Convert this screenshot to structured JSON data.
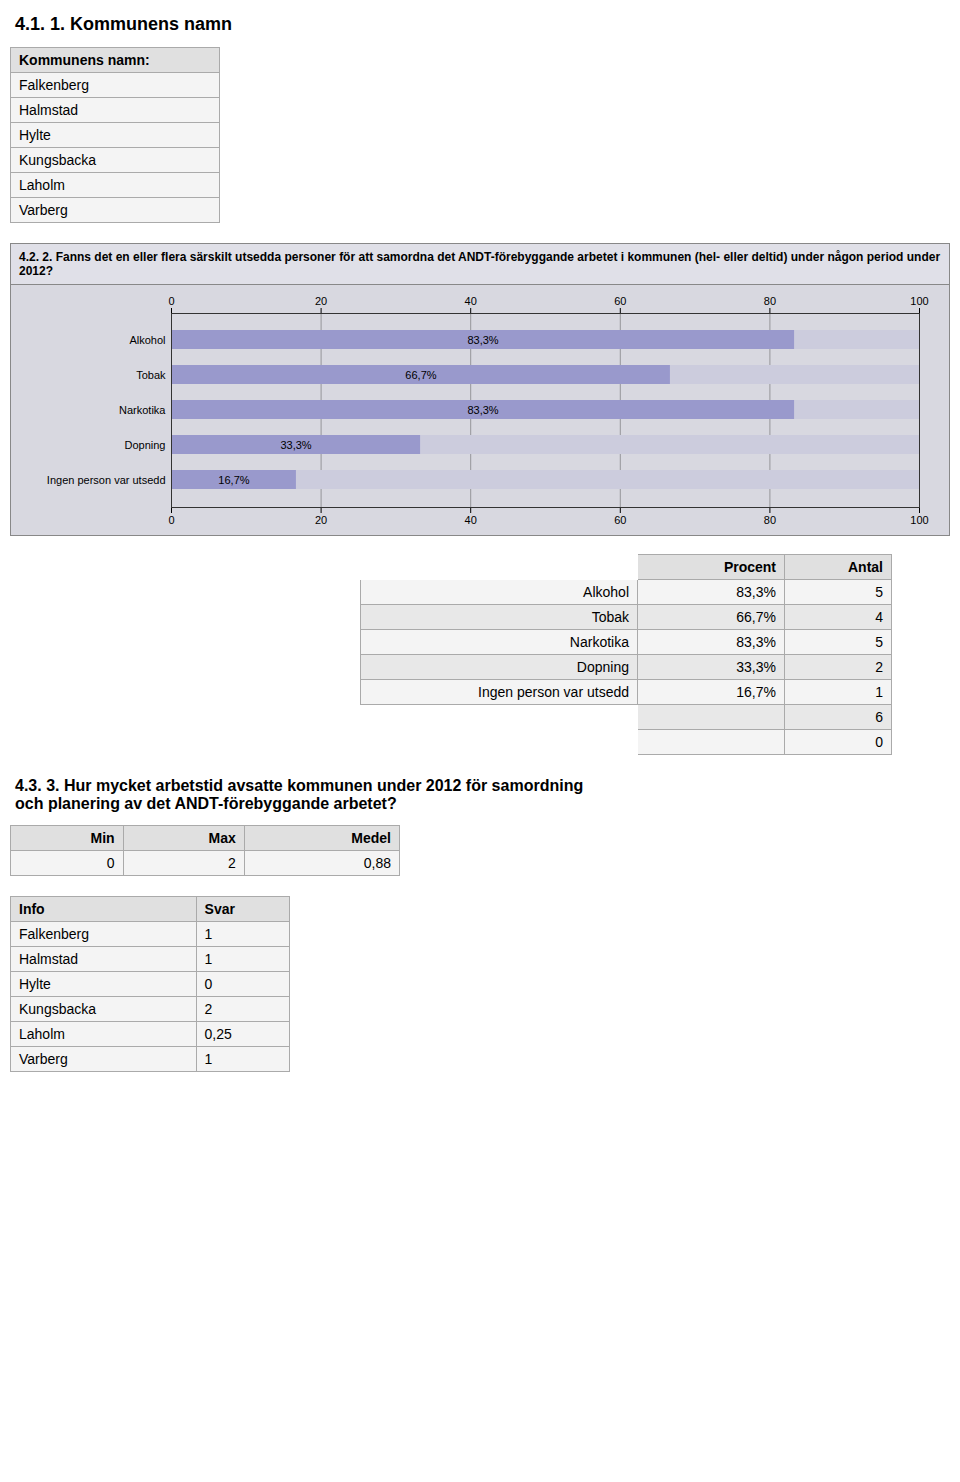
{
  "chart_data": [
    {
      "type": "table",
      "title": "4.1. 1. Kommunens namn",
      "columns": [
        "Kommunens namn:"
      ],
      "rows": [
        [
          "Falkenberg"
        ],
        [
          "Halmstad"
        ],
        [
          "Hylte"
        ],
        [
          "Kungsbacka"
        ],
        [
          "Laholm"
        ],
        [
          "Varberg"
        ]
      ]
    },
    {
      "type": "bar",
      "orientation": "horizontal",
      "title": "4.2. 2. Fanns det en eller flera särskilt utsedda personer för att samordna det ANDT-förebyggande arbetet i kommunen (hel- eller deltid) under någon period under 2012?",
      "categories": [
        "Alkohol",
        "Tobak",
        "Narkotika",
        "Dopning",
        "Ingen person var utsedd"
      ],
      "values": [
        83.3,
        66.7,
        83.3,
        33.3,
        16.7
      ],
      "value_labels": [
        "83,3%",
        "66,7%",
        "83,3%",
        "33,3%",
        "16,7%"
      ],
      "data_labels": true,
      "color": "#9999cc",
      "xlim": [
        0,
        100
      ],
      "xticks": [
        0,
        20,
        40,
        60,
        80,
        100
      ],
      "grid": true
    },
    {
      "type": "table",
      "columns": [
        null,
        "Procent",
        "Antal"
      ],
      "rows": [
        [
          "Alkohol",
          "83,3%",
          "5"
        ],
        [
          "Tobak",
          "66,7%",
          "4"
        ],
        [
          "Narkotika",
          "83,3%",
          "5"
        ],
        [
          "Dopning",
          "33,3%",
          "2"
        ],
        [
          "Ingen person var utsedd",
          "16,7%",
          "1"
        ],
        [
          null,
          null,
          "6"
        ],
        [
          null,
          null,
          "0"
        ]
      ]
    },
    {
      "type": "table",
      "title": "4.3. 3. Hur mycket arbetstid avsatte kommunen under 2012 för samordning\noch planering av det ANDT-förebyggande arbetet?",
      "columns": [
        "Min",
        "Max",
        "Medel"
      ],
      "rows": [
        [
          "0",
          "2",
          "0,88"
        ]
      ]
    },
    {
      "type": "table",
      "columns": [
        "Info",
        "Svar"
      ],
      "rows": [
        [
          "Falkenberg",
          "1"
        ],
        [
          "Halmstad",
          "1"
        ],
        [
          "Hylte",
          "0"
        ],
        [
          "Kungsbacka",
          "2"
        ],
        [
          "Laholm",
          "0,25"
        ],
        [
          "Varberg",
          "1"
        ]
      ]
    }
  ]
}
